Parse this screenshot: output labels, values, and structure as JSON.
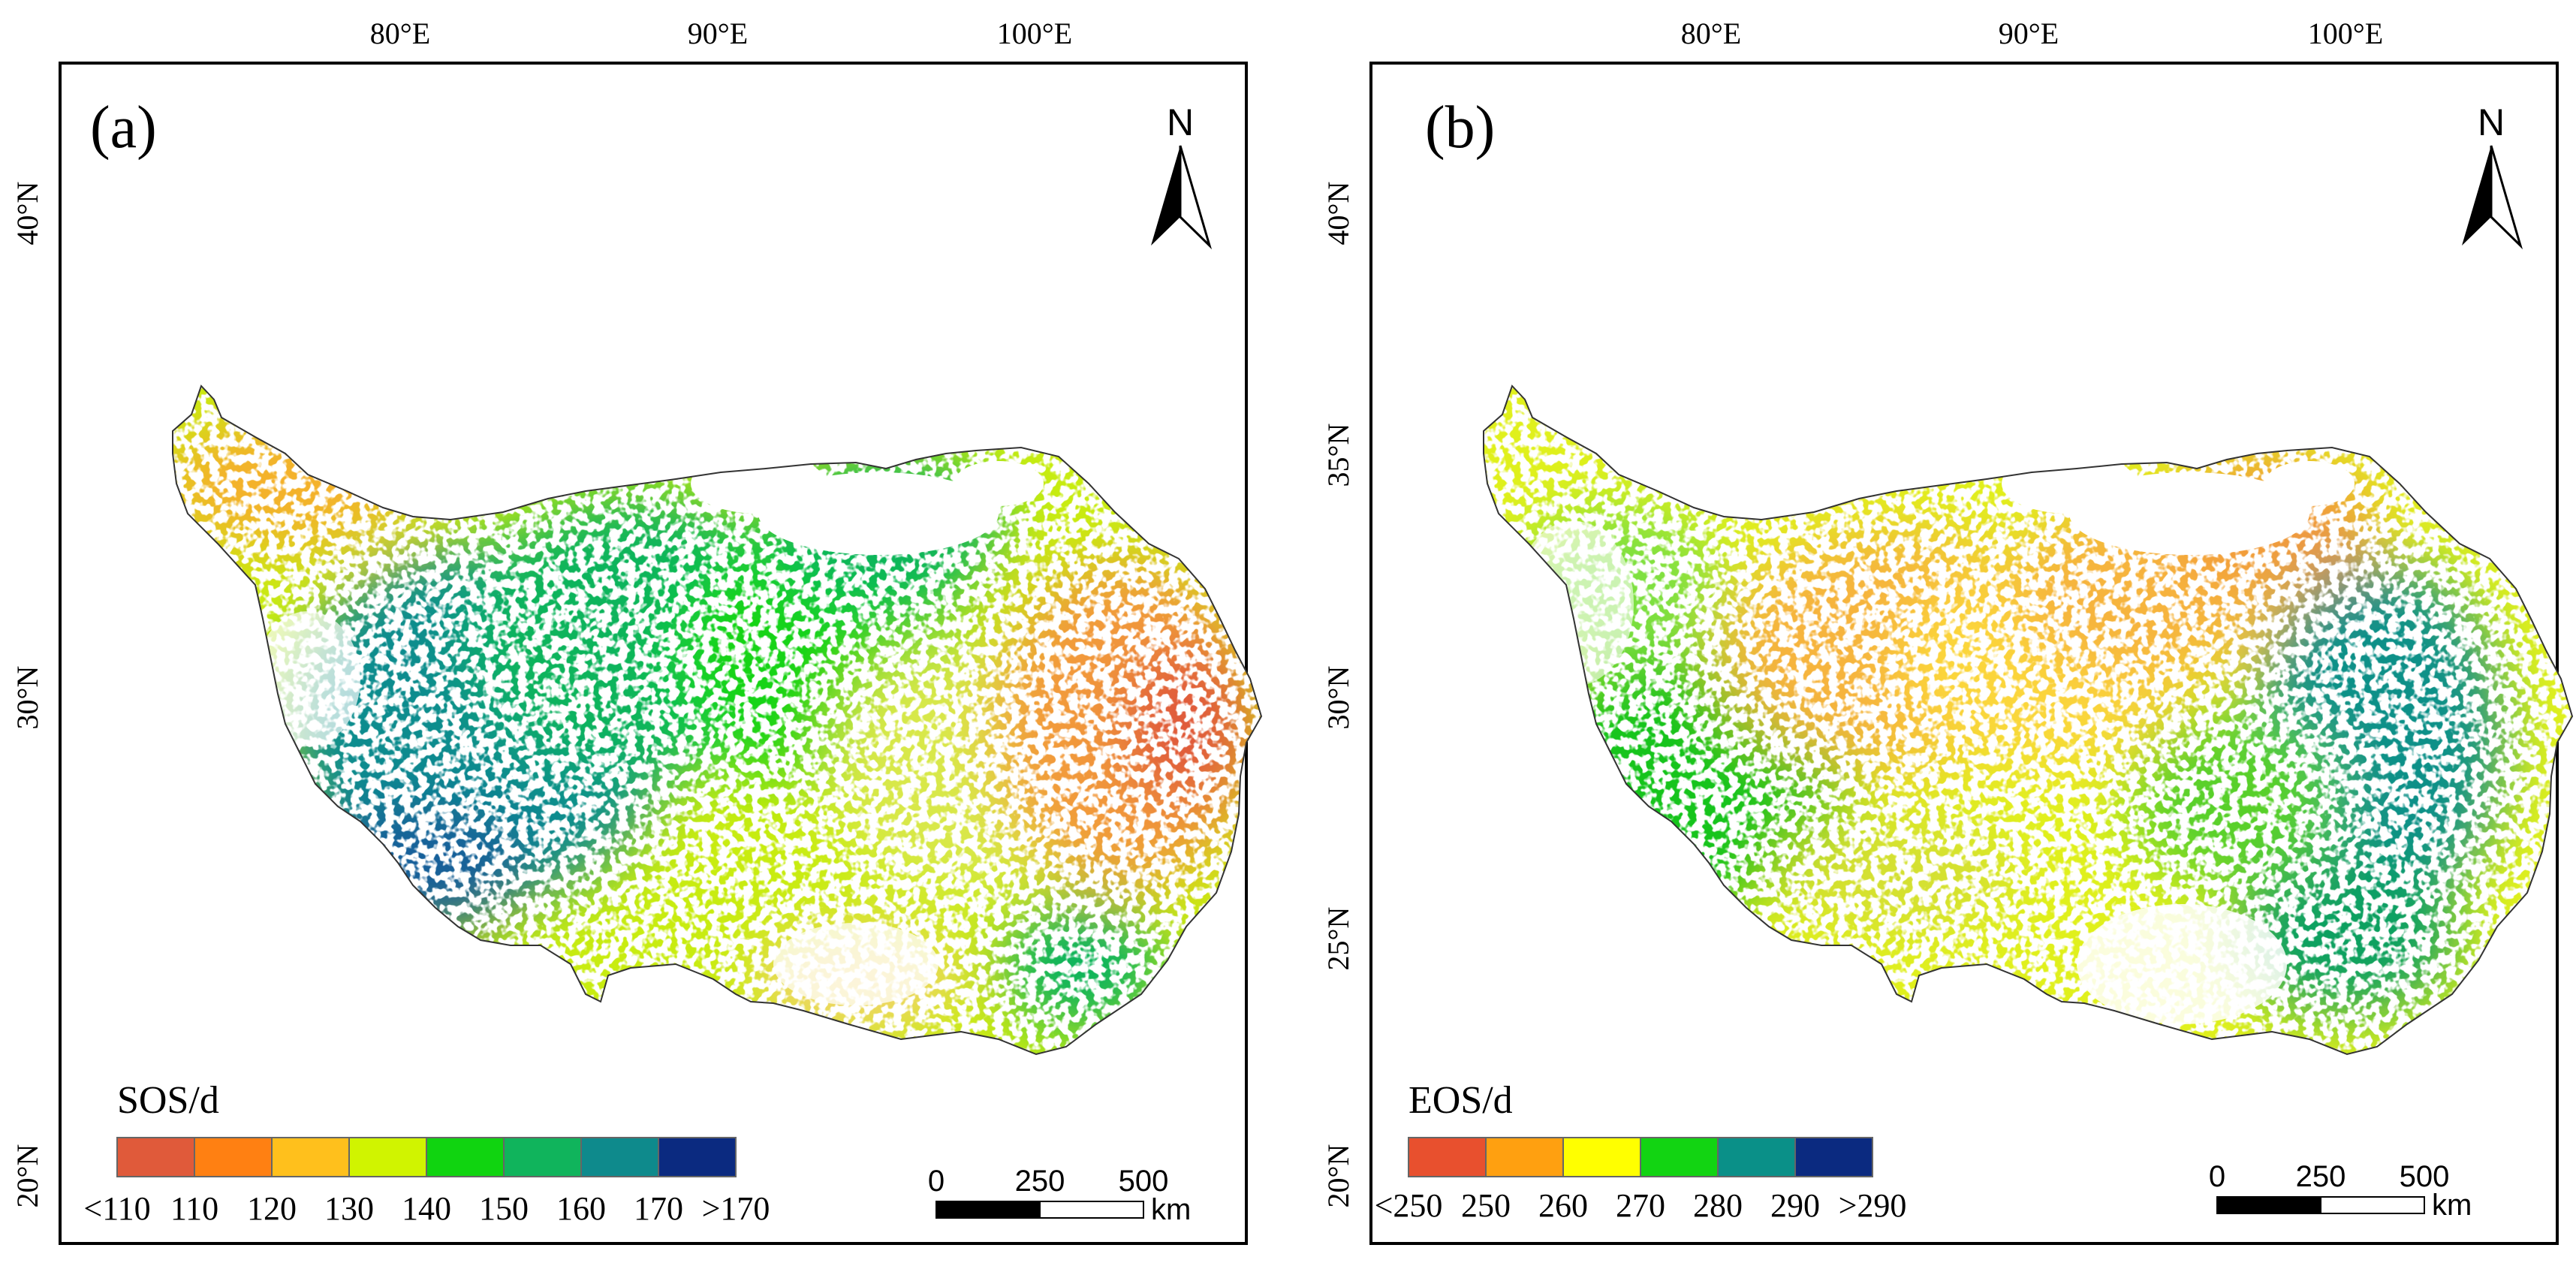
{
  "panels": [
    {
      "id": "a",
      "panel_label": "(a)",
      "north_label": "N",
      "lon_ticks": [
        "80°E",
        "90°E",
        "100°E"
      ],
      "lat_ticks": [
        "40°N",
        "30°N",
        "20°N"
      ],
      "legend": {
        "title": "SOS/d",
        "colors": [
          "#e05a3a",
          "#ff8012",
          "#ffc01c",
          "#d0f400",
          "#10d410",
          "#10b45c",
          "#0e8a8c",
          "#0b2a80"
        ],
        "labels": [
          "<110",
          "110",
          "120",
          "130",
          "140",
          "150",
          "160",
          "170",
          ">170"
        ]
      },
      "scalebar": {
        "ticks": [
          "0",
          "250",
          "500"
        ],
        "unit": "km"
      }
    },
    {
      "id": "b",
      "panel_label": "(b)",
      "north_label": "N",
      "lon_ticks": [
        "80°E",
        "90°E",
        "100°E"
      ],
      "lat_ticks": [
        "40°N",
        "35°N",
        "30°N",
        "25°N",
        "20°N"
      ],
      "legend": {
        "title": "EOS/d",
        "colors": [
          "#e8502e",
          "#ffa010",
          "#ffff00",
          "#12d412",
          "#0a9088",
          "#0b2a80"
        ],
        "labels": [
          "<250",
          "250",
          "260",
          "270",
          "280",
          "290",
          ">290"
        ]
      },
      "scalebar": {
        "ticks": [
          "0",
          "250",
          "500"
        ],
        "unit": "km"
      }
    }
  ]
}
